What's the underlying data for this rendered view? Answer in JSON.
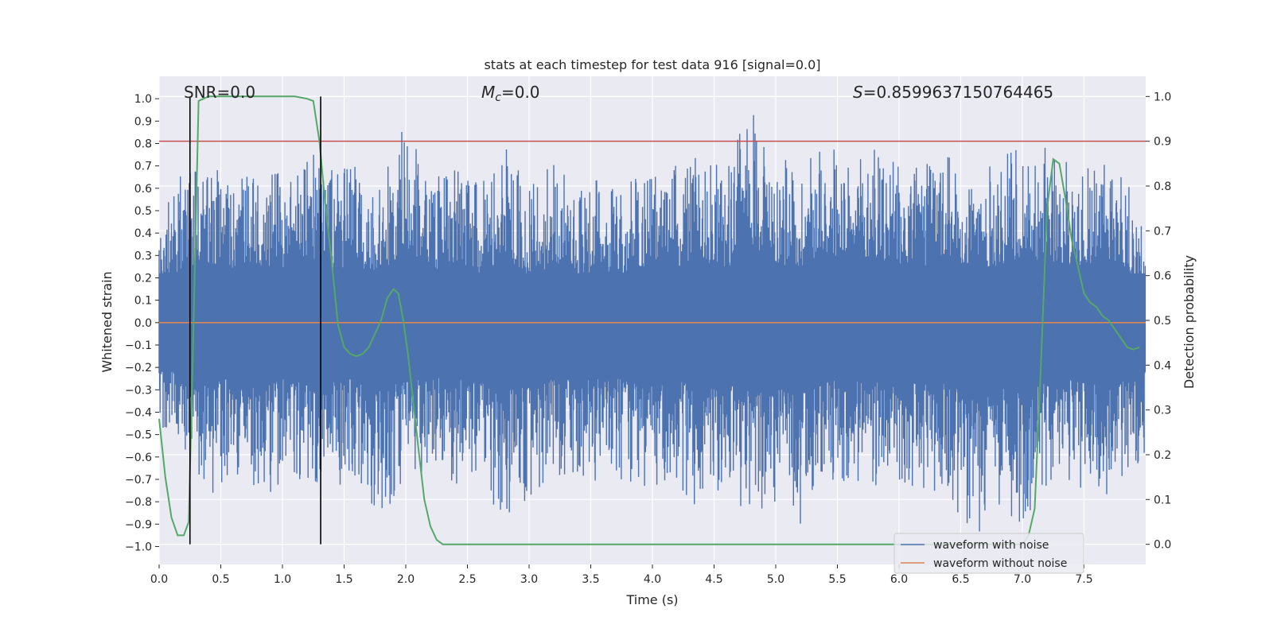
{
  "chart_data": {
    "type": "line",
    "title": "stats at each timestep for test data 916 [signal=0.0]",
    "xlabel": "Time (s)",
    "ylabel": "Whitened strain",
    "ylabel_right": "Detection probability",
    "xlim": [
      0.0,
      8.0
    ],
    "ylim": [
      -1.08,
      1.1
    ],
    "ylim_right": [
      -0.045,
      1.045
    ],
    "x_ticks": [
      0.0,
      0.5,
      1.0,
      1.5,
      2.0,
      2.5,
      3.0,
      3.5,
      4.0,
      4.5,
      5.0,
      5.5,
      6.0,
      6.5,
      7.0,
      7.5
    ],
    "x_tick_labels": [
      "0.0",
      "0.5",
      "1.0",
      "1.5",
      "2.0",
      "2.5",
      "3.0",
      "3.5",
      "4.0",
      "4.5",
      "5.0",
      "5.5",
      "6.0",
      "6.5",
      "7.0",
      "7.5"
    ],
    "y_ticks": [
      1.0,
      0.9,
      0.8,
      0.7,
      0.6,
      0.5,
      0.4,
      0.3,
      0.2,
      0.1,
      0.0,
      -0.1,
      -0.2,
      -0.3,
      -0.4,
      -0.5,
      -0.6,
      -0.7,
      -0.8,
      -0.9,
      -1.0
    ],
    "y_tick_labels": [
      "1.0",
      "0.9",
      "0.8",
      "0.7",
      "0.6",
      "0.5",
      "0.4",
      "0.3",
      "0.2",
      "0.1",
      "0.0",
      "−0.1",
      "−0.2",
      "−0.3",
      "−0.4",
      "−0.5",
      "−0.6",
      "−0.7",
      "−0.8",
      "−0.9",
      "−1.0"
    ],
    "y_right_ticks": [
      1.0,
      0.9,
      0.8,
      0.7,
      0.6,
      0.5,
      0.4,
      0.3,
      0.2,
      0.1,
      0.0
    ],
    "y_right_tick_labels": [
      "1.0",
      "0.9",
      "0.8",
      "0.7",
      "0.6",
      "0.5",
      "0.4",
      "0.3",
      "0.2",
      "0.1",
      "0.0"
    ],
    "annotations": {
      "snr": "SNR=0.0",
      "mc_symbol": "M",
      "mc_sub": "c",
      "mc_value": "=0.0",
      "s_symbol": "S",
      "s_value": "=0.8599637150764465"
    },
    "vertical_markers_x": [
      0.25,
      1.31
    ],
    "threshold_right": 0.9,
    "series": [
      {
        "name": "waveform with noise",
        "color": "#4c72b0",
        "description": "dense noise, approx. amplitude envelope",
        "envelope": {
          "x": [
            0.0,
            0.2,
            0.4,
            0.6,
            0.8,
            1.0,
            1.2,
            1.4,
            1.6,
            1.8,
            2.0,
            2.2,
            2.4,
            2.6,
            2.8,
            3.0,
            3.2,
            3.4,
            3.6,
            3.8,
            4.0,
            4.2,
            4.4,
            4.6,
            4.8,
            5.0,
            5.2,
            5.4,
            5.6,
            5.8,
            6.0,
            6.2,
            6.4,
            6.6,
            6.8,
            7.0,
            7.2,
            7.4,
            7.6,
            7.8,
            8.0
          ],
          "upper": [
            0.5,
            0.68,
            0.75,
            0.7,
            0.72,
            0.68,
            0.78,
            0.7,
            0.7,
            0.65,
            0.92,
            0.6,
            0.78,
            0.6,
            0.82,
            0.6,
            0.72,
            0.6,
            0.65,
            0.62,
            0.72,
            0.7,
            0.78,
            0.68,
            1.0,
            0.75,
            0.7,
            0.9,
            0.68,
            0.82,
            0.7,
            0.72,
            0.74,
            0.68,
            0.72,
            0.82,
            0.78,
            0.72,
            0.75,
            0.72,
            0.4
          ],
          "lower": [
            -0.45,
            -0.6,
            -0.78,
            -0.7,
            -0.8,
            -0.72,
            -0.7,
            -0.76,
            -0.7,
            -0.88,
            -0.7,
            -0.7,
            -0.72,
            -0.76,
            -0.86,
            -0.82,
            -0.7,
            -0.72,
            -0.7,
            -0.72,
            -0.76,
            -0.72,
            -0.86,
            -0.8,
            -0.84,
            -0.82,
            -0.9,
            -0.74,
            -0.72,
            -0.74,
            -0.72,
            -0.74,
            -0.78,
            -0.98,
            -0.82,
            -0.9,
            -0.74,
            -0.72,
            -0.78,
            -0.76,
            -0.6
          ]
        }
      },
      {
        "name": "waveform without noise",
        "color": "#dd8452",
        "x": [
          0.0,
          8.0
        ],
        "y": [
          0.0,
          0.0
        ]
      },
      {
        "name": "Detection probability",
        "color": "#55a868",
        "axis": "right",
        "x": [
          0.0,
          0.05,
          0.1,
          0.15,
          0.2,
          0.24,
          0.28,
          0.32,
          0.4,
          0.6,
          0.8,
          1.0,
          1.1,
          1.2,
          1.25,
          1.3,
          1.35,
          1.4,
          1.45,
          1.5,
          1.55,
          1.6,
          1.65,
          1.7,
          1.75,
          1.8,
          1.85,
          1.9,
          1.94,
          1.98,
          2.02,
          2.06,
          2.1,
          2.15,
          2.2,
          2.25,
          2.3,
          2.4,
          6.0,
          7.0,
          7.05,
          7.1,
          7.15,
          7.2,
          7.25,
          7.3,
          7.35,
          7.4,
          7.45,
          7.5,
          7.55,
          7.6,
          7.65,
          7.7,
          7.75,
          7.8,
          7.85,
          7.9,
          7.95
        ],
        "y": [
          0.28,
          0.15,
          0.06,
          0.02,
          0.02,
          0.05,
          0.5,
          0.99,
          1.0,
          1.0,
          1.0,
          1.0,
          1.0,
          0.995,
          0.99,
          0.9,
          0.75,
          0.63,
          0.49,
          0.44,
          0.425,
          0.42,
          0.425,
          0.44,
          0.47,
          0.5,
          0.55,
          0.57,
          0.56,
          0.5,
          0.42,
          0.32,
          0.22,
          0.1,
          0.04,
          0.01,
          0.0,
          0.0,
          0.0,
          0.0,
          0.02,
          0.08,
          0.4,
          0.75,
          0.86,
          0.85,
          0.77,
          0.68,
          0.62,
          0.56,
          0.54,
          0.53,
          0.51,
          0.5,
          0.48,
          0.46,
          0.44,
          0.435,
          0.44
        ]
      }
    ],
    "legend": {
      "placement": "lower-right",
      "entries": [
        "waveform with noise",
        "waveform without noise"
      ]
    }
  }
}
